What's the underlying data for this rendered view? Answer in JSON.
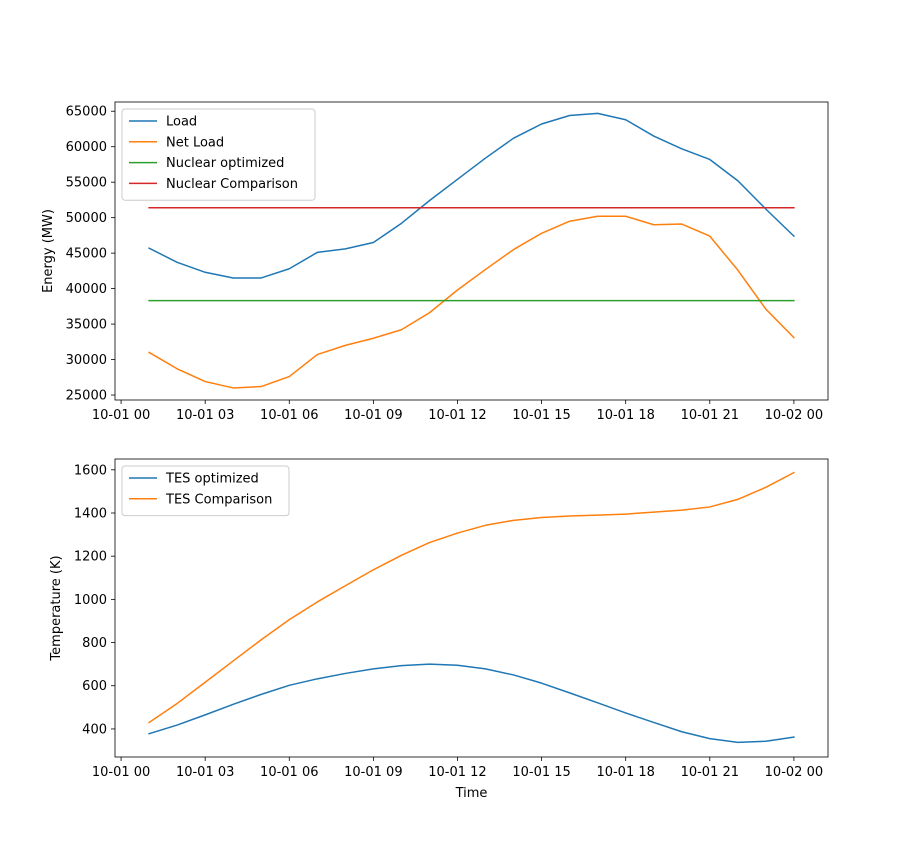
{
  "figure": {
    "xlabel": "Time"
  },
  "x_tick_labels": [
    "10-01 00",
    "10-01 03",
    "10-01 06",
    "10-01 09",
    "10-01 12",
    "10-01 15",
    "10-01 18",
    "10-01 21",
    "10-02 00"
  ],
  "chart_data": [
    {
      "type": "line",
      "title": "",
      "xlabel": "",
      "ylabel": "Energy (MW)",
      "x_unit": "hour",
      "x": [
        "2023-10-01 01:00",
        "2023-10-01 02:00",
        "2023-10-01 03:00",
        "2023-10-01 04:00",
        "2023-10-01 05:00",
        "2023-10-01 06:00",
        "2023-10-01 07:00",
        "2023-10-01 08:00",
        "2023-10-01 09:00",
        "2023-10-01 10:00",
        "2023-10-01 11:00",
        "2023-10-01 12:00",
        "2023-10-01 13:00",
        "2023-10-01 14:00",
        "2023-10-01 15:00",
        "2023-10-01 16:00",
        "2023-10-01 17:00",
        "2023-10-01 18:00",
        "2023-10-01 19:00",
        "2023-10-01 20:00",
        "2023-10-01 21:00",
        "2023-10-01 22:00",
        "2023-10-01 23:00",
        "2023-10-02 00:00"
      ],
      "xlim": [
        "2023-09-30 23:47",
        "2023-10-02 01:13"
      ],
      "ylim": [
        24300,
        66300
      ],
      "yticks": [
        25000,
        30000,
        35000,
        40000,
        45000,
        50000,
        55000,
        60000,
        65000
      ],
      "grid": false,
      "legend_loc": "upper left",
      "series": [
        {
          "name": "Load",
          "color": "#1f77b4",
          "values": [
            45700,
            43700,
            42300,
            41500,
            41500,
            42800,
            45100,
            45600,
            46500,
            49200,
            52400,
            55400,
            58400,
            61200,
            63200,
            64400,
            64700,
            63800,
            61500,
            59700,
            58200,
            55200,
            51200,
            47400
          ]
        },
        {
          "name": "Net Load",
          "color": "#ff7f0e",
          "values": [
            31000,
            28700,
            26900,
            26000,
            26200,
            27600,
            30700,
            32000,
            33000,
            34200,
            36600,
            39800,
            42700,
            45500,
            47800,
            49500,
            50200,
            50200,
            49000,
            49100,
            47400,
            42600,
            37100,
            33100
          ]
        },
        {
          "name": "Nuclear optimized",
          "color": "#2ca02c",
          "values": [
            38300,
            38300,
            38300,
            38300,
            38300,
            38300,
            38300,
            38300,
            38300,
            38300,
            38300,
            38300,
            38300,
            38300,
            38300,
            38300,
            38300,
            38300,
            38300,
            38300,
            38300,
            38300,
            38300,
            38300
          ]
        },
        {
          "name": "Nuclear Comparison",
          "color": "#d62728",
          "values": [
            51400,
            51400,
            51400,
            51400,
            51400,
            51400,
            51400,
            51400,
            51400,
            51400,
            51400,
            51400,
            51400,
            51400,
            51400,
            51400,
            51400,
            51400,
            51400,
            51400,
            51400,
            51400,
            51400,
            51400
          ]
        }
      ]
    },
    {
      "type": "line",
      "title": "",
      "xlabel": "Time",
      "ylabel": "Temperature (K)",
      "x_unit": "hour",
      "x": [
        "2023-10-01 01:00",
        "2023-10-01 02:00",
        "2023-10-01 03:00",
        "2023-10-01 04:00",
        "2023-10-01 05:00",
        "2023-10-01 06:00",
        "2023-10-01 07:00",
        "2023-10-01 08:00",
        "2023-10-01 09:00",
        "2023-10-01 10:00",
        "2023-10-01 11:00",
        "2023-10-01 12:00",
        "2023-10-01 13:00",
        "2023-10-01 14:00",
        "2023-10-01 15:00",
        "2023-10-01 16:00",
        "2023-10-01 17:00",
        "2023-10-01 18:00",
        "2023-10-01 19:00",
        "2023-10-01 20:00",
        "2023-10-01 21:00",
        "2023-10-01 22:00",
        "2023-10-01 23:00",
        "2023-10-02 00:00"
      ],
      "xlim": [
        "2023-09-30 23:47",
        "2023-10-02 01:13"
      ],
      "ylim": [
        270,
        1650
      ],
      "yticks": [
        400,
        600,
        800,
        1000,
        1200,
        1400,
        1600
      ],
      "grid": false,
      "legend_loc": "upper left",
      "series": [
        {
          "name": "TES optimized",
          "color": "#1f77b4",
          "values": [
            378,
            418,
            465,
            514,
            560,
            602,
            632,
            657,
            678,
            693,
            700,
            695,
            678,
            650,
            612,
            567,
            521,
            474,
            430,
            387,
            355,
            338,
            343,
            362
          ]
        },
        {
          "name": "TES Comparison",
          "color": "#ff7f0e",
          "values": [
            430,
            518,
            616,
            715,
            813,
            906,
            988,
            1063,
            1137,
            1204,
            1263,
            1307,
            1343,
            1366,
            1379,
            1386,
            1390,
            1395,
            1404,
            1413,
            1428,
            1463,
            1519,
            1587
          ]
        }
      ]
    }
  ]
}
